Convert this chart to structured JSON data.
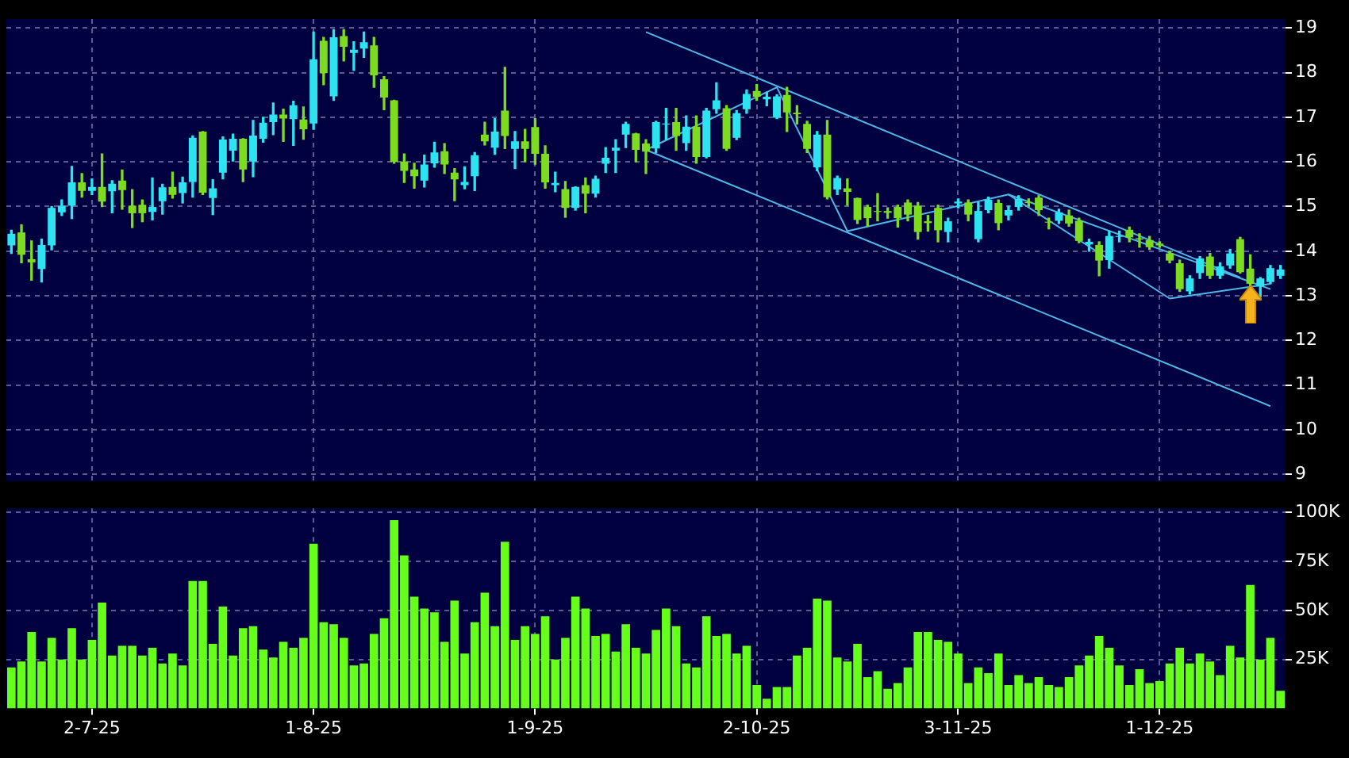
{
  "chart_data": [
    {
      "type": "candlestick",
      "categories": [
        null,
        null,
        null,
        null,
        null,
        null,
        null,
        null,
        null,
        null,
        null,
        null,
        null,
        null,
        null,
        null,
        null,
        null,
        null,
        null,
        null,
        null,
        null,
        null,
        null,
        null,
        null,
        null,
        null,
        null,
        null,
        null,
        null,
        null,
        null,
        null,
        null,
        null,
        null,
        null,
        null,
        null,
        null,
        null,
        null,
        null,
        null,
        null,
        null,
        null,
        null,
        null,
        null,
        null,
        null,
        null,
        null,
        null,
        null,
        null,
        null,
        null,
        null,
        null,
        null,
        null,
        null,
        null,
        null,
        null,
        null,
        null,
        null,
        null,
        null,
        null,
        null,
        null,
        null,
        null,
        null,
        null,
        null,
        null,
        null,
        null,
        null,
        null,
        null,
        null,
        null,
        null,
        null,
        null,
        null,
        null,
        null,
        null,
        null,
        null,
        null,
        null,
        null,
        null,
        null,
        null,
        null,
        null,
        null,
        null,
        null,
        null,
        null,
        null,
        null,
        null,
        null,
        null,
        null,
        null,
        null,
        null,
        null,
        null,
        null,
        null,
        null
      ],
      "ohlc": [
        [
          14.13,
          14.47,
          13.95,
          14.39
        ],
        [
          14.42,
          14.59,
          13.74,
          13.92
        ],
        [
          13.82,
          14.23,
          13.35,
          13.75
        ],
        [
          13.6,
          14.27,
          13.31,
          14.14
        ],
        [
          14.13,
          15.0,
          14.03,
          14.97
        ],
        [
          14.87,
          15.15,
          14.8,
          15.02
        ],
        [
          15.02,
          15.9,
          14.73,
          15.54
        ],
        [
          15.54,
          15.74,
          15.21,
          15.35
        ],
        [
          15.35,
          15.62,
          15.27,
          15.44
        ],
        [
          15.44,
          16.18,
          15.0,
          15.11
        ],
        [
          15.34,
          15.58,
          14.86,
          15.51
        ],
        [
          15.58,
          15.82,
          14.94,
          15.37
        ],
        [
          15.02,
          15.38,
          14.53,
          14.85
        ],
        [
          15.04,
          15.15,
          14.66,
          14.85
        ],
        [
          14.88,
          15.64,
          14.7,
          14.99
        ],
        [
          15.12,
          15.5,
          14.83,
          15.43
        ],
        [
          15.44,
          15.77,
          15.19,
          15.26
        ],
        [
          15.3,
          15.66,
          15.08,
          15.54
        ],
        [
          15.55,
          16.58,
          15.21,
          16.54
        ],
        [
          16.68,
          16.68,
          15.27,
          15.31
        ],
        [
          15.19,
          15.6,
          14.82,
          15.41
        ],
        [
          15.76,
          16.56,
          15.62,
          16.5
        ],
        [
          16.25,
          16.62,
          16.02,
          16.52
        ],
        [
          16.52,
          16.52,
          15.56,
          15.83
        ],
        [
          16.01,
          16.93,
          15.67,
          16.59
        ],
        [
          16.52,
          17.0,
          16.44,
          16.88
        ],
        [
          16.89,
          17.32,
          16.61,
          17.06
        ],
        [
          17.06,
          17.18,
          16.46,
          16.97
        ],
        [
          16.96,
          17.36,
          16.37,
          17.27
        ],
        [
          16.95,
          17.23,
          16.51,
          16.73
        ],
        [
          16.86,
          18.91,
          16.73,
          18.3
        ],
        [
          18.71,
          18.79,
          17.73,
          17.99
        ],
        [
          17.47,
          18.96,
          17.38,
          18.79
        ],
        [
          18.82,
          18.96,
          18.26,
          18.58
        ],
        [
          18.44,
          18.69,
          18.05,
          18.51
        ],
        [
          18.54,
          18.91,
          18.34,
          18.68
        ],
        [
          18.61,
          18.79,
          17.67,
          17.94
        ],
        [
          17.85,
          17.91,
          17.17,
          17.44
        ],
        [
          17.38,
          17.38,
          15.97,
          16.0
        ],
        [
          16.01,
          16.18,
          15.54,
          15.8
        ],
        [
          15.83,
          15.97,
          15.41,
          15.68
        ],
        [
          15.58,
          16.15,
          15.44,
          15.94
        ],
        [
          15.97,
          16.44,
          15.88,
          16.21
        ],
        [
          16.24,
          16.41,
          15.74,
          15.94
        ],
        [
          15.76,
          15.85,
          15.13,
          15.61
        ],
        [
          15.48,
          15.89,
          15.4,
          15.55
        ],
        [
          15.68,
          16.21,
          15.36,
          16.15
        ],
        [
          16.61,
          16.89,
          16.38,
          16.46
        ],
        [
          16.32,
          16.97,
          16.17,
          16.68
        ],
        [
          17.15,
          18.12,
          16.3,
          16.58
        ],
        [
          16.29,
          16.68,
          15.85,
          16.46
        ],
        [
          16.46,
          16.73,
          16.0,
          16.29
        ],
        [
          16.78,
          16.97,
          15.95,
          16.18
        ],
        [
          16.18,
          16.36,
          15.41,
          15.54
        ],
        [
          15.48,
          15.77,
          15.33,
          15.53
        ],
        [
          15.39,
          15.56,
          14.76,
          14.97
        ],
        [
          14.97,
          15.44,
          14.92,
          15.44
        ],
        [
          15.48,
          15.64,
          14.86,
          15.29
        ],
        [
          15.29,
          15.68,
          15.21,
          15.62
        ],
        [
          15.96,
          16.32,
          15.76,
          16.09
        ],
        [
          16.25,
          16.5,
          15.76,
          16.32
        ],
        [
          16.61,
          16.89,
          16.32,
          16.85
        ],
        [
          16.64,
          16.64,
          16.0,
          16.27
        ],
        [
          16.41,
          16.5,
          15.74,
          16.23
        ],
        [
          16.3,
          16.91,
          16.21,
          16.89
        ],
        [
          16.84,
          17.2,
          16.5,
          16.86
        ],
        [
          16.89,
          17.2,
          16.26,
          16.58
        ],
        [
          16.42,
          17.03,
          16.26,
          16.79
        ],
        [
          16.79,
          17.03,
          15.97,
          16.11
        ],
        [
          16.11,
          17.2,
          16.09,
          17.15
        ],
        [
          17.18,
          17.77,
          17.09,
          17.38
        ],
        [
          17.2,
          17.26,
          16.26,
          16.29
        ],
        [
          16.54,
          17.15,
          16.5,
          17.09
        ],
        [
          17.18,
          17.61,
          17.09,
          17.52
        ],
        [
          17.59,
          17.73,
          17.38,
          17.46
        ],
        [
          17.4,
          17.56,
          17.26,
          17.46
        ],
        [
          16.99,
          17.5,
          16.97,
          17.47
        ],
        [
          17.5,
          17.67,
          16.68,
          17.11
        ],
        [
          17.1,
          17.26,
          16.85,
          17.07
        ],
        [
          16.85,
          16.91,
          16.21,
          16.29
        ],
        [
          15.88,
          16.68,
          15.8,
          16.61
        ],
        [
          16.61,
          16.93,
          15.17,
          15.21
        ],
        [
          15.38,
          15.68,
          15.27,
          15.64
        ],
        [
          15.41,
          15.62,
          15.03,
          15.33
        ],
        [
          15.19,
          15.19,
          14.62,
          14.7
        ],
        [
          14.99,
          15.03,
          14.56,
          14.74
        ],
        [
          14.9,
          15.29,
          14.68,
          14.88
        ],
        [
          14.9,
          14.97,
          14.74,
          14.86
        ],
        [
          14.99,
          15.03,
          14.54,
          14.74
        ],
        [
          15.09,
          15.15,
          14.68,
          14.82
        ],
        [
          15.02,
          15.09,
          14.27,
          14.43
        ],
        [
          14.67,
          14.8,
          14.45,
          14.63
        ],
        [
          14.97,
          15.03,
          14.21,
          14.47
        ],
        [
          14.43,
          14.74,
          14.21,
          14.67
        ],
        [
          15.07,
          15.17,
          14.97,
          15.11
        ],
        [
          15.09,
          15.15,
          14.68,
          14.82
        ],
        [
          14.27,
          15.09,
          14.21,
          14.9
        ],
        [
          14.92,
          15.21,
          14.86,
          15.15
        ],
        [
          15.08,
          15.15,
          14.48,
          14.63
        ],
        [
          14.8,
          15.01,
          14.7,
          14.92
        ],
        [
          14.99,
          15.24,
          14.92,
          15.17
        ],
        [
          15.1,
          15.17,
          15.01,
          15.08
        ],
        [
          15.2,
          15.24,
          14.8,
          14.92
        ],
        [
          14.66,
          14.74,
          14.5,
          14.64
        ],
        [
          14.68,
          14.94,
          14.62,
          14.87
        ],
        [
          14.8,
          14.92,
          14.56,
          14.62
        ],
        [
          14.68,
          14.74,
          14.19,
          14.23
        ],
        [
          14.15,
          14.27,
          14.0,
          14.21
        ],
        [
          14.14,
          14.21,
          13.45,
          13.79
        ],
        [
          13.8,
          14.45,
          13.62,
          14.34
        ],
        [
          14.32,
          14.45,
          14.21,
          14.34
        ],
        [
          14.48,
          14.54,
          14.21,
          14.31
        ],
        [
          14.29,
          14.39,
          14.09,
          14.26
        ],
        [
          14.25,
          14.33,
          14.04,
          14.09
        ],
        [
          14.17,
          14.21,
          14.09,
          14.13
        ],
        [
          13.95,
          14.0,
          13.74,
          13.79
        ],
        [
          13.73,
          13.8,
          13.1,
          13.15
        ],
        [
          13.1,
          13.45,
          13.04,
          13.39
        ],
        [
          13.51,
          13.88,
          13.39,
          13.84
        ],
        [
          13.88,
          13.95,
          13.39,
          13.45
        ],
        [
          13.45,
          13.74,
          13.39,
          13.66
        ],
        [
          13.68,
          14.04,
          13.62,
          13.95
        ],
        [
          14.27,
          14.31,
          13.51,
          13.53
        ],
        [
          13.61,
          13.92,
          13.21,
          13.27
        ],
        [
          13.21,
          13.41,
          12.98,
          13.39
        ],
        [
          13.31,
          13.68,
          13.27,
          13.62
        ],
        [
          13.45,
          13.68,
          13.39,
          13.59
        ]
      ],
      "series": [
        {
          "type": "line",
          "color": "#4fb8e8",
          "values": [
            null,
            null,
            null,
            null,
            null,
            null,
            null,
            null,
            null,
            null,
            null,
            null,
            null,
            null,
            null,
            null,
            null,
            null,
            null,
            null,
            null,
            null,
            null,
            null,
            null,
            null,
            null,
            null,
            null,
            null,
            null,
            null,
            null,
            null,
            null,
            null,
            null,
            null,
            null,
            null,
            null,
            null,
            null,
            null,
            null,
            null,
            null,
            null,
            null,
            null,
            null,
            null,
            null,
            null,
            null,
            null,
            null,
            null,
            null,
            null,
            null,
            null,
            null,
            18.91,
            null,
            null,
            null,
            null,
            null,
            null,
            null,
            null,
            null,
            null,
            null,
            null,
            null,
            null,
            null,
            null,
            null,
            null,
            null,
            null,
            null,
            null,
            null,
            null,
            null,
            null,
            null,
            null,
            null,
            null,
            null,
            null,
            null,
            null,
            null,
            null,
            null,
            null,
            null,
            null,
            null,
            null,
            null,
            null,
            null,
            null,
            null,
            null,
            null,
            null,
            null,
            null,
            null,
            null,
            null,
            null,
            null,
            null,
            13.41,
            null,
            null,
            null,
            null
          ]
        },
        {
          "type": "line",
          "color": "#4fb8e8",
          "values": [
            null,
            null,
            null,
            null,
            null,
            null,
            null,
            null,
            null,
            null,
            null,
            null,
            null,
            null,
            null,
            null,
            null,
            null,
            null,
            null,
            null,
            null,
            null,
            null,
            null,
            null,
            null,
            null,
            null,
            null,
            null,
            null,
            null,
            null,
            null,
            null,
            null,
            null,
            null,
            null,
            null,
            null,
            null,
            null,
            null,
            null,
            null,
            null,
            null,
            null,
            null,
            null,
            null,
            null,
            null,
            null,
            null,
            null,
            null,
            null,
            null,
            null,
            null,
            16.27,
            null,
            null,
            null,
            null,
            null,
            null,
            null,
            null,
            null,
            null,
            null,
            null,
            null,
            null,
            null,
            null,
            null,
            null,
            null,
            null,
            null,
            null,
            null,
            null,
            null,
            null,
            null,
            null,
            null,
            null,
            null,
            null,
            null,
            null,
            null,
            null,
            null,
            null,
            null,
            null,
            null,
            null,
            null,
            null,
            null,
            null,
            null,
            null,
            null,
            null,
            null,
            null,
            null,
            null,
            null,
            null,
            null,
            null,
            null,
            null,
            null,
            10.53,
            null
          ]
        },
        {
          "type": "line",
          "color": "#4fb8e8",
          "values": [
            null,
            null,
            null,
            null,
            null,
            null,
            null,
            null,
            null,
            null,
            null,
            null,
            null,
            null,
            null,
            null,
            null,
            null,
            null,
            null,
            null,
            null,
            null,
            null,
            null,
            null,
            null,
            null,
            null,
            null,
            null,
            null,
            null,
            null,
            null,
            null,
            null,
            null,
            null,
            null,
            null,
            null,
            null,
            null,
            null,
            null,
            null,
            null,
            null,
            null,
            null,
            null,
            null,
            null,
            null,
            null,
            null,
            null,
            null,
            null,
            null,
            null,
            null,
            16.27,
            null,
            null,
            null,
            null,
            null,
            null,
            null,
            null,
            null,
            null,
            null,
            null,
            17.67,
            null,
            null,
            null,
            null,
            null,
            null,
            14.45,
            null,
            null,
            null,
            null,
            null,
            null,
            null,
            null,
            null,
            null,
            null,
            null,
            null,
            null,
            null,
            15.27,
            null,
            null,
            null,
            null,
            null,
            null,
            null,
            null,
            null,
            null,
            null,
            null,
            null,
            null,
            null,
            12.94,
            null,
            null,
            null,
            null,
            null,
            null,
            null,
            null,
            null,
            null,
            null
          ]
        },
        {
          "type": "line",
          "color": "#4fb8e8",
          "values": [
            null,
            null,
            null,
            null,
            null,
            null,
            null,
            null,
            null,
            null,
            null,
            null,
            null,
            null,
            null,
            null,
            null,
            null,
            null,
            null,
            null,
            null,
            null,
            null,
            null,
            null,
            null,
            null,
            null,
            null,
            null,
            null,
            null,
            null,
            null,
            null,
            null,
            null,
            null,
            null,
            null,
            null,
            null,
            null,
            null,
            null,
            null,
            null,
            null,
            null,
            null,
            null,
            null,
            null,
            null,
            null,
            null,
            null,
            null,
            null,
            null,
            null,
            null,
            null,
            null,
            null,
            null,
            null,
            null,
            null,
            null,
            null,
            null,
            null,
            null,
            null,
            null,
            null,
            null,
            null,
            null,
            null,
            null,
            null,
            null,
            null,
            null,
            null,
            null,
            null,
            null,
            null,
            null,
            null,
            null,
            null,
            null,
            null,
            null,
            15.27,
            null,
            null,
            null,
            null,
            null,
            null,
            null,
            null,
            null,
            null,
            null,
            null,
            null,
            null,
            null,
            null,
            null,
            null,
            null,
            null,
            null,
            null,
            null,
            null,
            null,
            13.15,
            null
          ]
        },
        {
          "type": "line",
          "color": "#4fb8e8",
          "values": [
            null,
            null,
            null,
            null,
            null,
            null,
            null,
            null,
            null,
            null,
            null,
            null,
            null,
            null,
            null,
            null,
            null,
            null,
            null,
            null,
            null,
            null,
            null,
            null,
            null,
            null,
            null,
            null,
            null,
            null,
            null,
            null,
            null,
            null,
            null,
            null,
            null,
            null,
            null,
            null,
            null,
            null,
            null,
            null,
            null,
            null,
            null,
            null,
            null,
            null,
            null,
            null,
            null,
            null,
            null,
            null,
            null,
            null,
            null,
            null,
            null,
            null,
            null,
            null,
            null,
            null,
            null,
            null,
            null,
            null,
            null,
            null,
            null,
            null,
            null,
            null,
            null,
            null,
            null,
            null,
            null,
            null,
            null,
            null,
            null,
            null,
            null,
            null,
            null,
            null,
            null,
            null,
            null,
            null,
            null,
            null,
            null,
            null,
            null,
            null,
            null,
            null,
            null,
            null,
            null,
            null,
            null,
            null,
            null,
            null,
            null,
            null,
            null,
            null,
            null,
            12.94,
            null,
            null,
            null,
            null,
            null,
            null,
            null,
            null,
            null,
            13.27,
            null
          ]
        }
      ],
      "ylim": [
        8.85,
        19.2
      ],
      "yticks": [
        9,
        10,
        11,
        12,
        13,
        14,
        15,
        16,
        17,
        18,
        19
      ],
      "grid": true,
      "tick_labels": "y"
    },
    {
      "type": "bar",
      "categories": [
        null,
        null,
        null,
        null,
        null,
        null,
        null,
        null,
        "2-7-25",
        null,
        null,
        null,
        null,
        null,
        null,
        null,
        null,
        null,
        null,
        null,
        null,
        null,
        null,
        null,
        null,
        null,
        null,
        null,
        null,
        null,
        "1-8-25",
        null,
        null,
        null,
        null,
        null,
        null,
        null,
        null,
        null,
        null,
        null,
        null,
        null,
        null,
        null,
        null,
        null,
        null,
        null,
        null,
        null,
        "1-9-25",
        null,
        null,
        null,
        null,
        null,
        null,
        null,
        null,
        null,
        null,
        null,
        null,
        null,
        null,
        null,
        null,
        null,
        null,
        null,
        null,
        null,
        "2-10-25",
        null,
        null,
        null,
        null,
        null,
        null,
        null,
        null,
        null,
        null,
        null,
        null,
        null,
        null,
        null,
        null,
        null,
        null,
        null,
        "3-11-25",
        null,
        null,
        null,
        null,
        null,
        null,
        null,
        null,
        null,
        null,
        null,
        null,
        null,
        null,
        null,
        null,
        null,
        null,
        null,
        "1-12-25",
        null,
        null,
        null,
        null,
        null,
        null,
        null,
        null,
        null,
        null,
        null,
        null
      ],
      "values": [
        21,
        24,
        39,
        24,
        36,
        25,
        41,
        25,
        35,
        54,
        27,
        32,
        32,
        27,
        31,
        23,
        28,
        22,
        65,
        65,
        33,
        52,
        27,
        41,
        42,
        30,
        26,
        34,
        31,
        36,
        84,
        44,
        43,
        36,
        22,
        23,
        38,
        46,
        96,
        78,
        57,
        51,
        49,
        34,
        55,
        28,
        44,
        59,
        42,
        85,
        35,
        42,
        38,
        47,
        25,
        36,
        57,
        51,
        37,
        38,
        29,
        43,
        31,
        28,
        40,
        51,
        42,
        23,
        21,
        47,
        37,
        38,
        28,
        32,
        12,
        5,
        11,
        11,
        27,
        31,
        56,
        55,
        26,
        24,
        33,
        16,
        19,
        10,
        13,
        21,
        39,
        39,
        35,
        34,
        28,
        13,
        21,
        18,
        28,
        12,
        17,
        13,
        16,
        12,
        11,
        16,
        22,
        27,
        37,
        31,
        22,
        12,
        20,
        13,
        14,
        23,
        31,
        23,
        28,
        24,
        17,
        32,
        26,
        63,
        25,
        36,
        9
      ],
      "color": "#66ff1a",
      "ylim": [
        0,
        102
      ],
      "yticks": [
        {
          "value": 25,
          "label": "25K"
        },
        {
          "value": 50,
          "label": "50K"
        },
        {
          "value": 75,
          "label": "75K"
        },
        {
          "value": 100,
          "label": "100K"
        }
      ],
      "grid": true
    }
  ]
}
